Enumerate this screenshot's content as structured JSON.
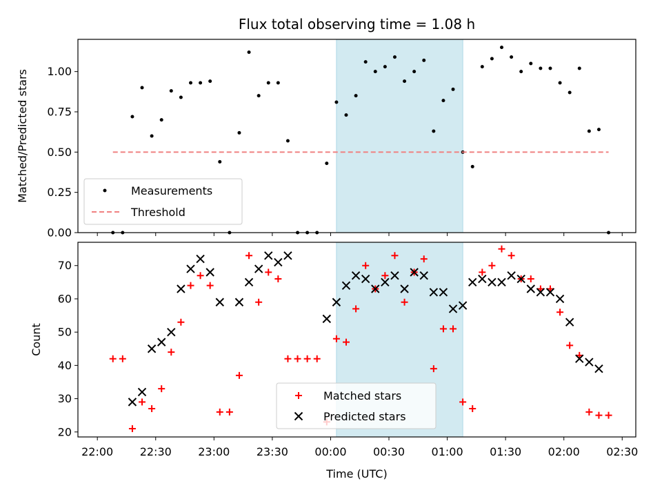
{
  "chart_data": [
    {
      "type": "scatter",
      "title": "Flux total observing time = 1.08 h",
      "xlabel": "",
      "ylabel": "Matched/Predicted stars",
      "ylim": [
        0,
        1.2
      ],
      "xlim": [
        "21:50",
        "02:37"
      ],
      "yticks": [
        "0.00",
        "0.25",
        "0.50",
        "0.75",
        "1.00"
      ],
      "highlight_span": {
        "start": "00:03",
        "end": "01:08",
        "color": "#add8e6"
      },
      "series": [
        {
          "name": "Measurements",
          "marker": "dot",
          "color": "#000000",
          "x": [
            "22:08",
            "22:13",
            "22:18",
            "22:23",
            "22:28",
            "22:33",
            "22:38",
            "22:43",
            "22:48",
            "22:53",
            "22:58",
            "23:03",
            "23:08",
            "23:13",
            "23:18",
            "23:23",
            "23:28",
            "23:33",
            "23:38",
            "23:43",
            "23:48",
            "23:53",
            "23:58",
            "00:03",
            "00:08",
            "00:13",
            "00:18",
            "00:23",
            "00:28",
            "00:33",
            "00:38",
            "00:43",
            "00:48",
            "00:53",
            "00:58",
            "01:03",
            "01:08",
            "01:13",
            "01:18",
            "01:23",
            "01:28",
            "01:33",
            "01:38",
            "01:43",
            "01:48",
            "01:53",
            "01:58",
            "02:03",
            "02:08",
            "02:13",
            "02:18",
            "02:23"
          ],
          "y": [
            0.0,
            0.0,
            0.72,
            0.9,
            0.6,
            0.7,
            0.88,
            0.84,
            0.93,
            0.93,
            0.94,
            0.44,
            0.0,
            0.62,
            1.12,
            0.85,
            0.93,
            0.93,
            0.57,
            0.0,
            0.0,
            0.0,
            0.43,
            0.81,
            0.73,
            0.85,
            1.06,
            1.0,
            1.03,
            1.09,
            0.94,
            1.0,
            1.07,
            0.63,
            0.82,
            0.89,
            0.5,
            0.41,
            1.03,
            1.08,
            1.15,
            1.09,
            1.0,
            1.05,
            1.02,
            1.02,
            0.93,
            0.87,
            1.02,
            0.63,
            0.64,
            0.0
          ]
        },
        {
          "name": "Threshold",
          "marker": "dashed-line",
          "color": "#f08080",
          "x": [
            "22:08",
            "02:23"
          ],
          "y": [
            0.5,
            0.5
          ]
        }
      ],
      "legend": {
        "placement": "lower-left"
      },
      "grid": false
    },
    {
      "type": "scatter",
      "title": "",
      "xlabel": "Time (UTC)",
      "ylabel": "Count",
      "ylim": [
        18.5,
        77
      ],
      "xlim": [
        "21:50",
        "02:37"
      ],
      "xticks": [
        "22:00",
        "22:30",
        "23:00",
        "23:30",
        "00:00",
        "00:30",
        "01:00",
        "01:30",
        "02:00",
        "02:30"
      ],
      "yticks": [
        "20",
        "30",
        "40",
        "50",
        "60",
        "70"
      ],
      "highlight_span": {
        "start": "00:03",
        "end": "01:08",
        "color": "#add8e6"
      },
      "series": [
        {
          "name": "Matched stars",
          "marker": "plus",
          "color": "#ff0000",
          "x": [
            "22:08",
            "22:13",
            "22:18",
            "22:23",
            "22:28",
            "22:33",
            "22:38",
            "22:43",
            "22:48",
            "22:53",
            "22:58",
            "23:03",
            "23:08",
            "23:13",
            "23:18",
            "23:23",
            "23:28",
            "23:33",
            "23:38",
            "23:43",
            "23:48",
            "23:53",
            "23:58",
            "00:03",
            "00:08",
            "00:13",
            "00:18",
            "00:23",
            "00:28",
            "00:33",
            "00:38",
            "00:43",
            "00:48",
            "00:53",
            "00:58",
            "01:03",
            "01:08",
            "01:13",
            "01:18",
            "01:23",
            "01:28",
            "01:33",
            "01:38",
            "01:43",
            "01:48",
            "01:53",
            "01:58",
            "02:03",
            "02:08",
            "02:13",
            "02:18",
            "02:23"
          ],
          "y": [
            42,
            42,
            21,
            29,
            27,
            33,
            44,
            53,
            64,
            67,
            64,
            26,
            26,
            37,
            73,
            59,
            68,
            66,
            42,
            42,
            42,
            42,
            23,
            48,
            47,
            57,
            70,
            63,
            67,
            73,
            59,
            68,
            72,
            39,
            51,
            51,
            29,
            27,
            68,
            70,
            75,
            73,
            66,
            66,
            63,
            63,
            56,
            46,
            43,
            26,
            25,
            25
          ]
        },
        {
          "name": "Predicted stars",
          "marker": "x",
          "color": "#000000",
          "x": [
            "22:18",
            "22:23",
            "22:28",
            "22:33",
            "22:38",
            "22:43",
            "22:48",
            "22:53",
            "22:58",
            "23:03",
            "23:13",
            "23:18",
            "23:23",
            "23:28",
            "23:33",
            "23:38",
            "23:58",
            "00:03",
            "00:08",
            "00:13",
            "00:18",
            "00:23",
            "00:28",
            "00:33",
            "00:38",
            "00:43",
            "00:48",
            "00:53",
            "00:58",
            "01:03",
            "01:08",
            "01:13",
            "01:18",
            "01:23",
            "01:28",
            "01:33",
            "01:38",
            "01:43",
            "01:48",
            "01:53",
            "01:58",
            "02:03",
            "02:08",
            "02:13",
            "02:18"
          ],
          "y": [
            29,
            32,
            45,
            47,
            50,
            63,
            69,
            72,
            68,
            59,
            59,
            65,
            69,
            73,
            71,
            73,
            54,
            59,
            64,
            67,
            66,
            63,
            65,
            67,
            63,
            68,
            67,
            62,
            62,
            57,
            58,
            65,
            66,
            65,
            65,
            67,
            66,
            63,
            62,
            62,
            60,
            53,
            42,
            41,
            39
          ]
        }
      ],
      "legend": {
        "placement": "lower-center"
      },
      "grid": false
    }
  ]
}
